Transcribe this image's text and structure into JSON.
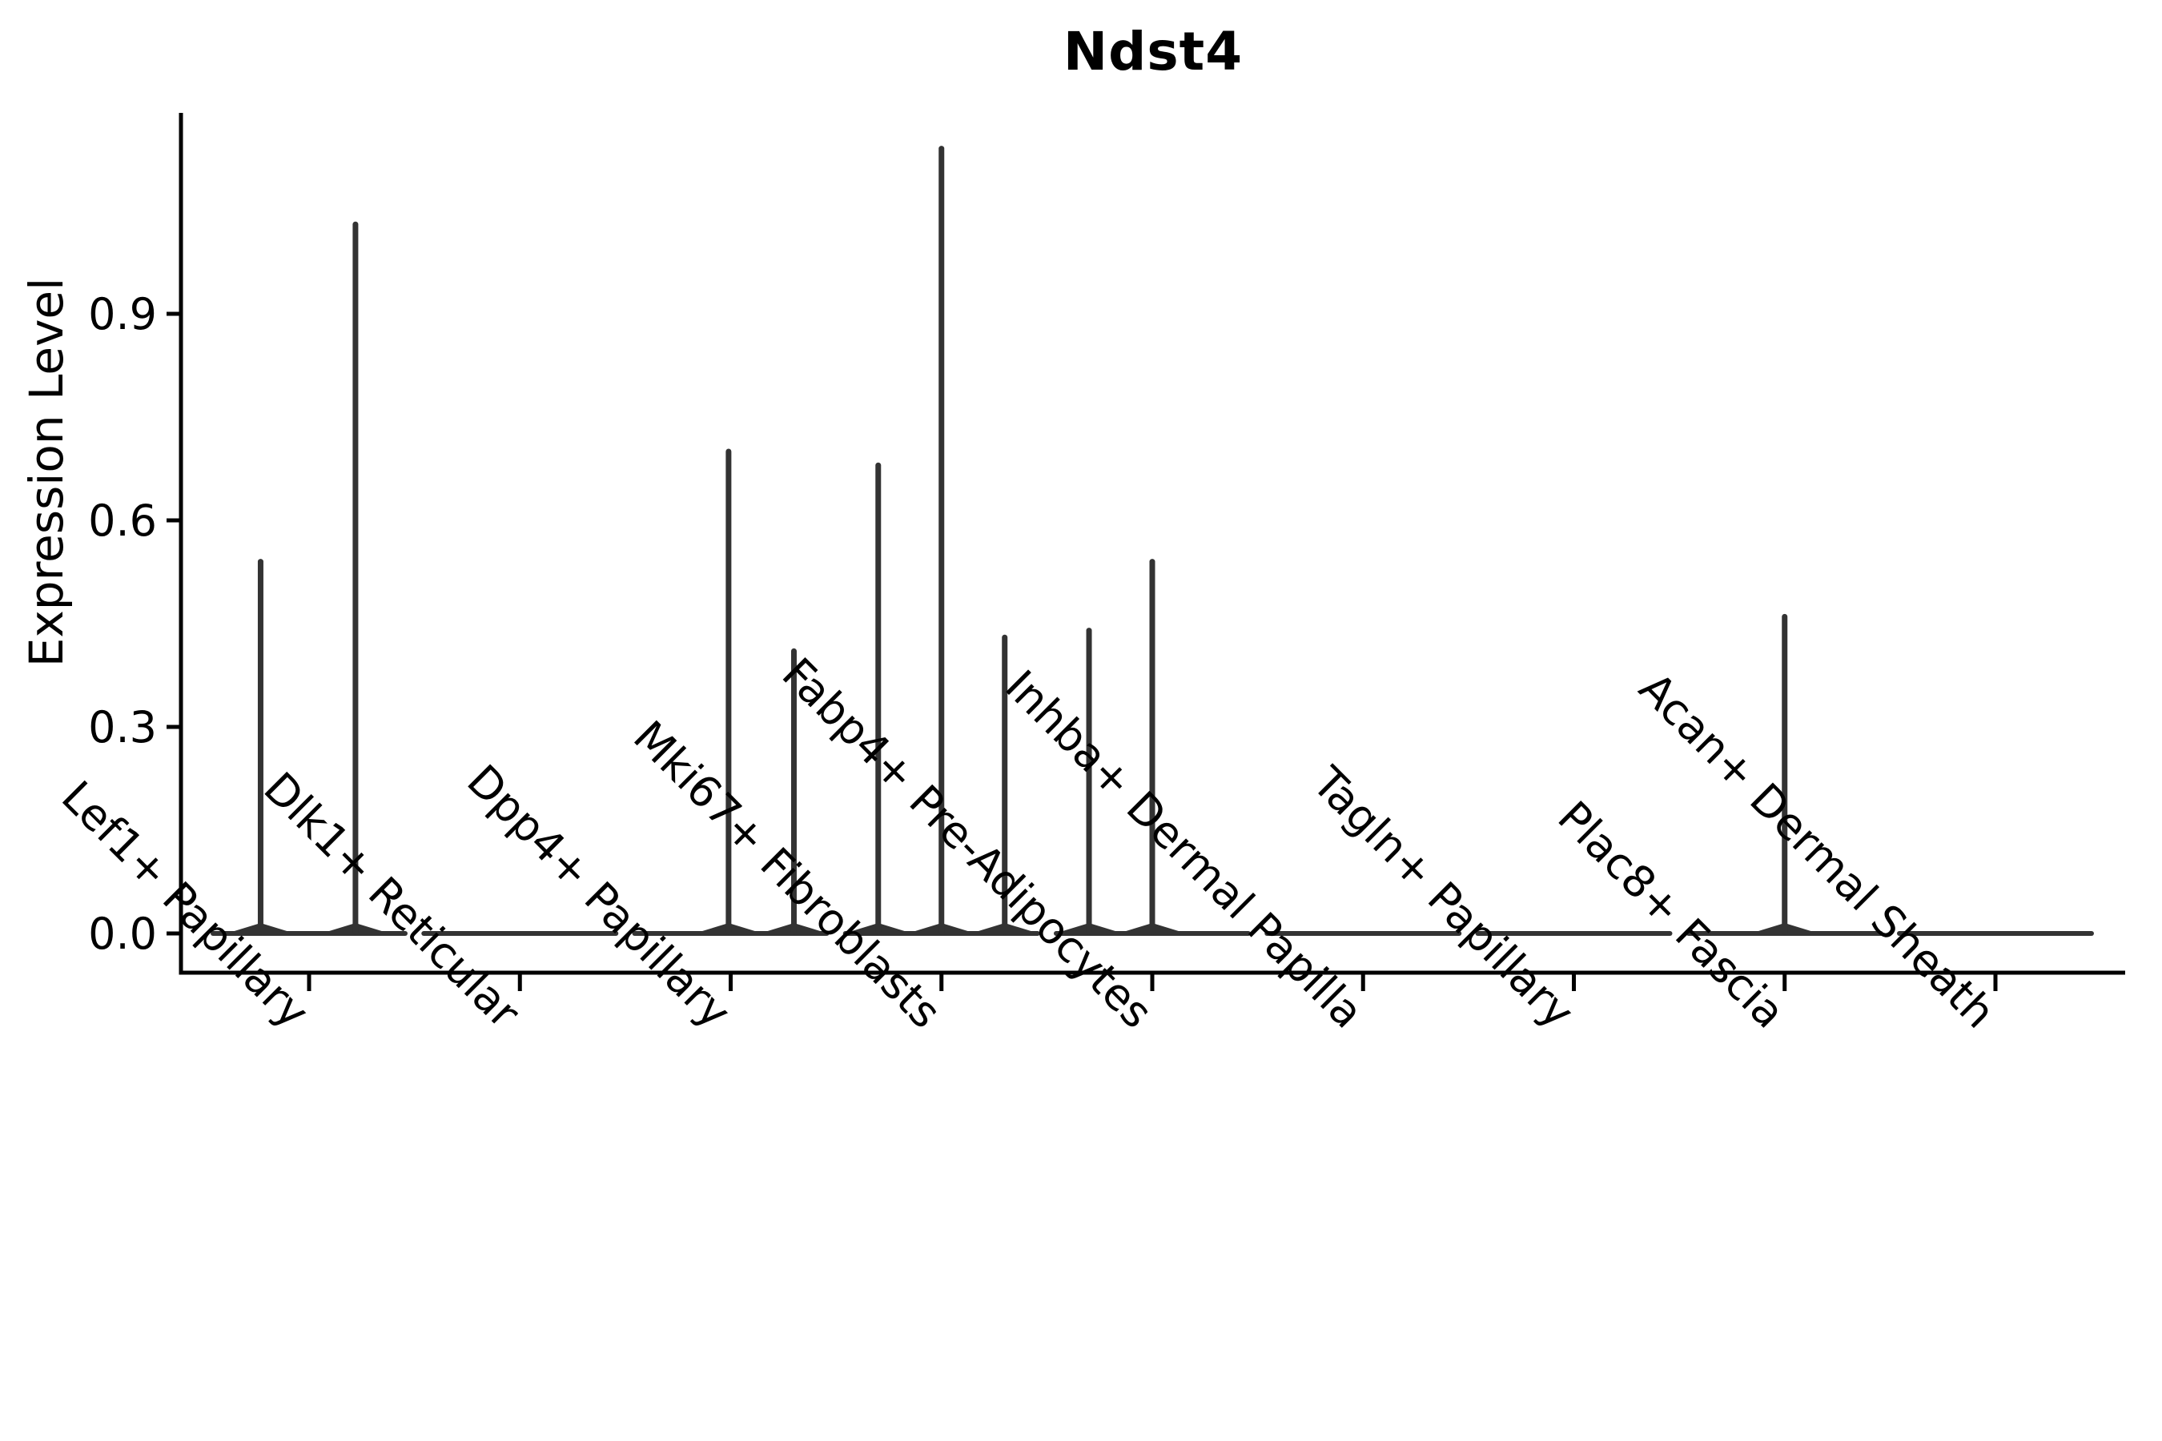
{
  "figure": {
    "background": "#ffffff"
  },
  "chart_data": {
    "type": "violin",
    "title": "Ndst4",
    "ylabel": "Expression Level",
    "xlabel": "",
    "grid": false,
    "legend": "none",
    "ylim": [
      -0.057,
      1.19
    ],
    "ytick_values": [
      0.0,
      0.3,
      0.6,
      0.9
    ],
    "ytick_labels": [
      "0.0",
      "0.3",
      "0.6",
      "0.9"
    ],
    "categories": [
      "Lef1+ Papillary",
      "Dlk1+ Reticular",
      "Dpp4+ Papillary",
      "Mki67+ Fibroblasts",
      "Fabp4+ Pre-Adipocytes",
      "Inhba+ Dermal Papilla",
      "Tagln+ Papillary",
      "Plac8+ Fascia",
      "Acan+ Dermal Sheath"
    ],
    "violins": [
      {
        "category": "Lef1+ Papillary",
        "base_value": 0.0,
        "spikes": [
          {
            "offset": -0.23,
            "value": 0.54
          },
          {
            "offset": 0.22,
            "value": 1.03
          }
        ]
      },
      {
        "category": "Dlk1+ Reticular",
        "base_value": 0.0,
        "spikes": []
      },
      {
        "category": "Dpp4+ Papillary",
        "base_value": 0.0,
        "spikes": [
          {
            "offset": -0.01,
            "value": 0.7
          },
          {
            "offset": 0.3,
            "value": 0.41
          }
        ]
      },
      {
        "category": "Mki67+ Fibroblasts",
        "base_value": 0.0,
        "spikes": [
          {
            "offset": -0.3,
            "value": 0.68
          },
          {
            "offset": 0.0,
            "value": 1.14
          },
          {
            "offset": 0.3,
            "value": 0.43
          }
        ]
      },
      {
        "category": "Fabp4+ Pre-Adipocytes",
        "base_value": 0.0,
        "spikes": [
          {
            "offset": -0.3,
            "value": 0.44
          },
          {
            "offset": 0.0,
            "value": 0.54
          }
        ]
      },
      {
        "category": "Inhba+ Dermal Papilla",
        "base_value": 0.0,
        "spikes": []
      },
      {
        "category": "Tagln+ Papillary",
        "base_value": 0.0,
        "spikes": []
      },
      {
        "category": "Plac8+ Fascia",
        "base_value": 0.0,
        "spikes": [
          {
            "offset": 0.0,
            "value": 0.46
          }
        ]
      },
      {
        "category": "Acan+ Dermal Sheath",
        "base_value": 0.0,
        "spikes": []
      }
    ],
    "colors": {
      "ink": "#000000",
      "violin": "#333333"
    }
  }
}
